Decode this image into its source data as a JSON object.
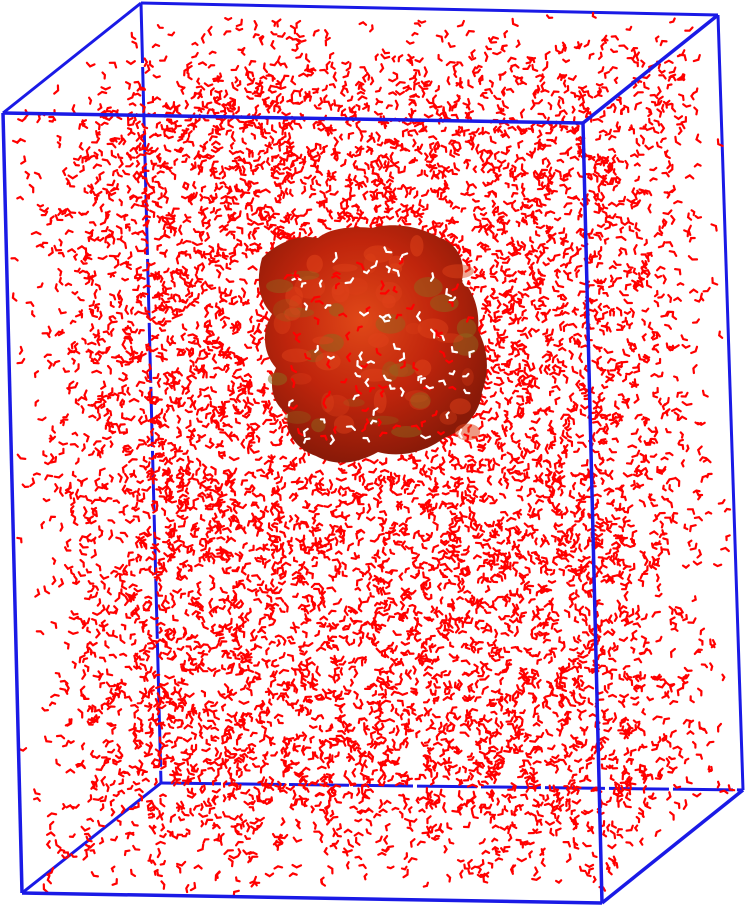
{
  "scene": {
    "background_color": "#ffffff",
    "box_color": "#1a1ae6",
    "water_color": "#ff0000",
    "water_highlight_color": "#ffffff",
    "cluster_color": "#c0200c",
    "cluster_highlight_color": "#8c6a1e",
    "water_molecule_count": 7000,
    "cluster_water_count": 120
  }
}
